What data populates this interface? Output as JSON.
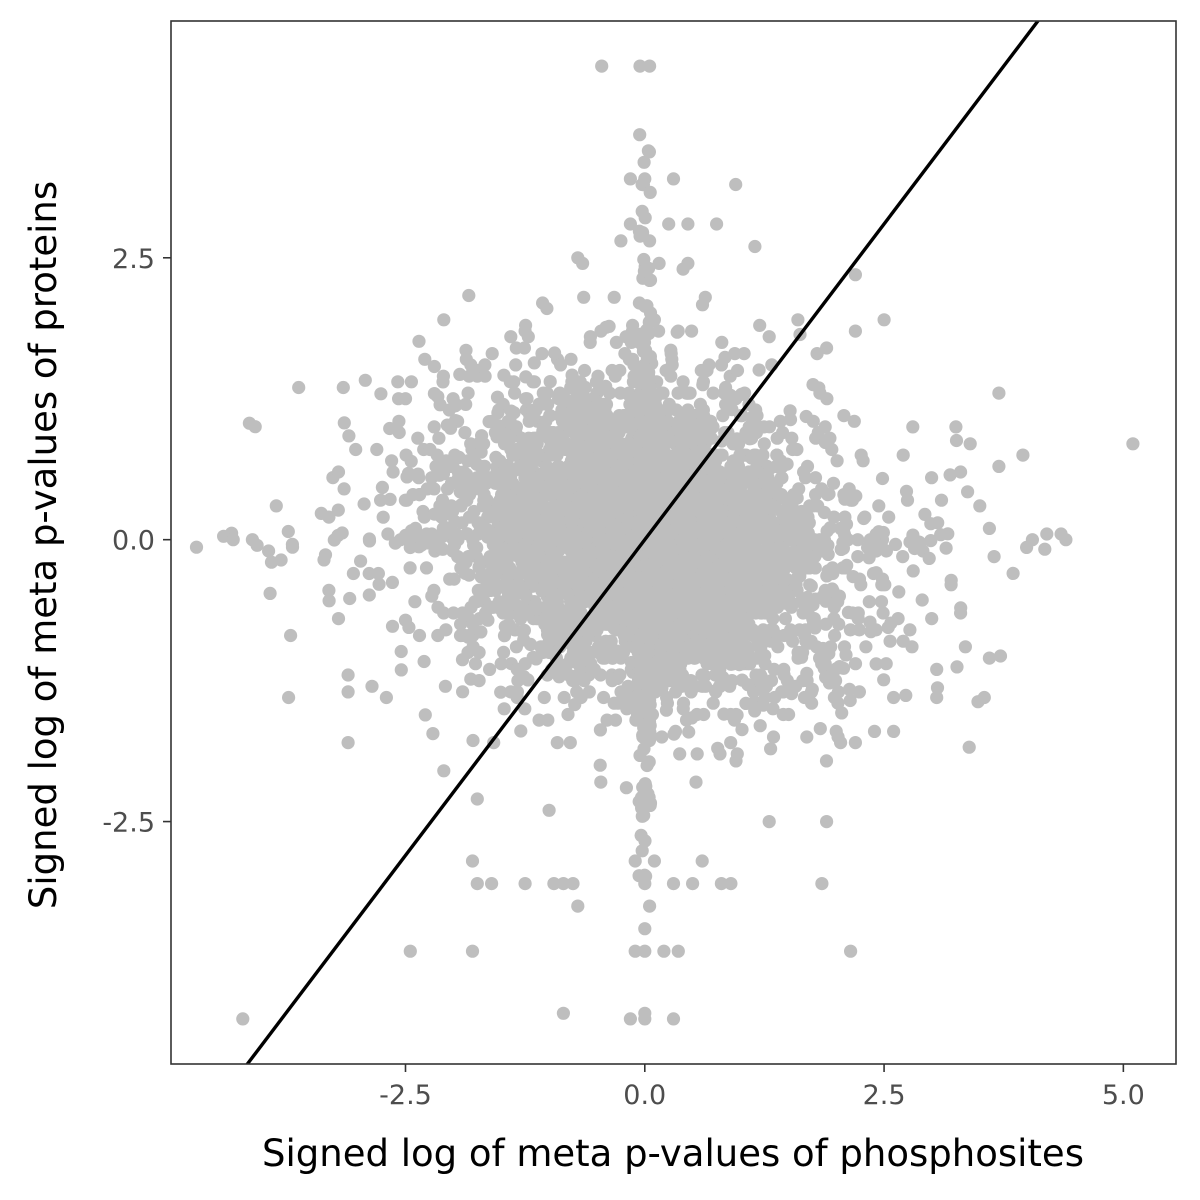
{
  "chart_data": {
    "type": "scatter",
    "xlabel": "Signed log of meta p-values of phosphosites",
    "ylabel": "Signed log of meta p-values of proteins",
    "xlim": [
      -4.95,
      5.55
    ],
    "ylim": [
      -4.65,
      4.6
    ],
    "x_ticks": [
      {
        "value": -2.5,
        "label": "-2.5"
      },
      {
        "value": 0.0,
        "label": "0.0"
      },
      {
        "value": 2.5,
        "label": "2.5"
      },
      {
        "value": 5.0,
        "label": "5.0"
      }
    ],
    "y_ticks": [
      {
        "value": 2.5,
        "label": "2.5"
      },
      {
        "value": 0.0,
        "label": "0.0"
      },
      {
        "value": -2.5,
        "label": "-2.5"
      }
    ],
    "grid": false,
    "legend": "none",
    "point_color": "#bebebe",
    "line_color": "#000000",
    "reference_line": {
      "slope": 1.12,
      "intercept": 0.0
    },
    "points_outliers": [
      [
        -0.45,
        4.2
      ],
      [
        -0.05,
        4.2
      ],
      [
        0.05,
        4.2
      ],
      [
        -0.15,
        3.2
      ],
      [
        0.0,
        3.2
      ],
      [
        0.3,
        3.2
      ],
      [
        0.95,
        3.15
      ],
      [
        -0.15,
        2.8
      ],
      [
        0.25,
        2.8
      ],
      [
        0.45,
        2.8
      ],
      [
        0.75,
        2.8
      ],
      [
        -0.25,
        2.65
      ],
      [
        0.05,
        2.65
      ],
      [
        1.15,
        2.6
      ],
      [
        -0.7,
        2.5
      ],
      [
        -0.65,
        2.45
      ],
      [
        0.15,
        2.45
      ],
      [
        0.45,
        2.45
      ],
      [
        0.4,
        2.4
      ],
      [
        2.2,
        2.35
      ],
      [
        -2.1,
        1.95
      ],
      [
        0.1,
        1.95
      ],
      [
        1.6,
        1.95
      ],
      [
        2.5,
        1.95
      ],
      [
        -1.4,
        1.8
      ],
      [
        1.3,
        1.8
      ],
      [
        2.2,
        1.85
      ],
      [
        1.9,
        1.7
      ],
      [
        -3.15,
        1.35
      ],
      [
        -2.5,
        1.25
      ],
      [
        3.7,
        1.3
      ],
      [
        -2.2,
        1.0
      ],
      [
        2.8,
        1.0
      ],
      [
        3.25,
        1.0
      ],
      [
        -2.8,
        0.8
      ],
      [
        2.7,
        0.75
      ],
      [
        3.4,
        0.85
      ],
      [
        3.95,
        0.75
      ],
      [
        3.7,
        0.65
      ],
      [
        5.1,
        0.85
      ],
      [
        -3.2,
        0.6
      ],
      [
        3.3,
        0.6
      ],
      [
        -3.85,
        0.3
      ],
      [
        -3.3,
        0.2
      ],
      [
        3.5,
        0.3
      ],
      [
        3.1,
        0.35
      ],
      [
        -4.4,
        0.03
      ],
      [
        -4.3,
        0.0
      ],
      [
        -4.1,
        0.0
      ],
      [
        -4.05,
        -0.05
      ],
      [
        -3.9,
        -0.2
      ],
      [
        -3.8,
        -0.18
      ],
      [
        4.05,
        0.0
      ],
      [
        4.2,
        0.05
      ],
      [
        4.4,
        0.0
      ],
      [
        4.35,
        0.05
      ],
      [
        3.65,
        -0.15
      ],
      [
        3.6,
        0.1
      ],
      [
        -3.7,
        -0.85
      ],
      [
        -3.3,
        -0.45
      ],
      [
        -3.2,
        -0.7
      ],
      [
        3.3,
        -0.65
      ],
      [
        3.2,
        -0.4
      ],
      [
        2.7,
        -0.9
      ],
      [
        3.35,
        -0.95
      ],
      [
        3.6,
        -1.05
      ],
      [
        3.05,
        -1.15
      ],
      [
        -3.1,
        -1.2
      ],
      [
        -3.1,
        -1.35
      ],
      [
        -2.85,
        -1.3
      ],
      [
        -2.7,
        -1.4
      ],
      [
        2.6,
        -1.4
      ],
      [
        3.05,
        -1.4
      ],
      [
        -3.1,
        -1.8
      ],
      [
        -2.1,
        -2.05
      ],
      [
        2.2,
        -1.8
      ],
      [
        2.0,
        -1.7
      ],
      [
        2.4,
        -1.7
      ],
      [
        2.6,
        -1.7
      ],
      [
        -1.75,
        -2.3
      ],
      [
        1.9,
        -2.5
      ],
      [
        1.3,
        -2.5
      ],
      [
        -1.0,
        -2.4
      ],
      [
        -1.8,
        -2.85
      ],
      [
        -1.75,
        -3.05
      ],
      [
        -1.6,
        -3.05
      ],
      [
        -1.25,
        -3.05
      ],
      [
        -0.95,
        -3.05
      ],
      [
        -0.85,
        -3.05
      ],
      [
        -0.75,
        -3.05
      ],
      [
        -0.7,
        -3.25
      ],
      [
        0.0,
        -3.05
      ],
      [
        0.05,
        -3.25
      ],
      [
        0.3,
        -3.05
      ],
      [
        0.5,
        -3.05
      ],
      [
        0.8,
        -3.05
      ],
      [
        0.9,
        -3.05
      ],
      [
        1.85,
        -3.05
      ],
      [
        -0.1,
        -2.85
      ],
      [
        0.1,
        -2.85
      ],
      [
        0.6,
        -2.85
      ],
      [
        0.0,
        -3.45
      ],
      [
        -2.45,
        -3.65
      ],
      [
        -1.8,
        -3.65
      ],
      [
        -0.1,
        -3.65
      ],
      [
        0.0,
        -3.65
      ],
      [
        0.2,
        -3.65
      ],
      [
        0.35,
        -3.65
      ],
      [
        2.15,
        -3.65
      ],
      [
        -4.2,
        -4.25
      ],
      [
        -0.85,
        -4.2
      ],
      [
        -0.15,
        -4.25
      ],
      [
        0.0,
        -4.25
      ],
      [
        0.0,
        -4.2
      ],
      [
        0.3,
        -4.25
      ]
    ]
  }
}
